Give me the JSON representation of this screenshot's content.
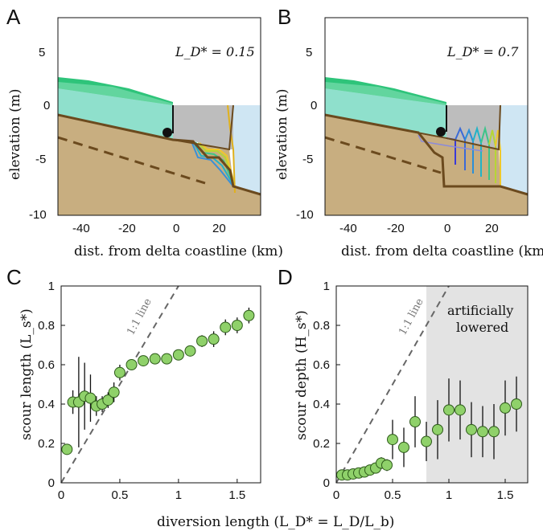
{
  "panels": {
    "A": {
      "letter": "A",
      "annotation": "L_D* = 0.15",
      "xticks": [
        "-40",
        "-20",
        "0",
        "20"
      ],
      "yticks": [
        "5",
        "0",
        "-5",
        "-10"
      ],
      "xlabel": "dist. from delta coastline (km)",
      "ylabel": "elevation (m)"
    },
    "B": {
      "letter": "B",
      "annotation": "L_D* = 0.7",
      "xticks": [
        "-40",
        "-20",
        "0",
        "20"
      ],
      "yticks": [
        "5",
        "0",
        "-5",
        "-10"
      ],
      "xlabel": "dist. from delta coastline (km)",
      "ylabel": "elevation (m)"
    },
    "C": {
      "letter": "C",
      "ylabel": "scour length (L_s*)",
      "line_label": "1:1 line"
    },
    "D": {
      "letter": "D",
      "ylabel": "scour depth (H_s*)",
      "line_label": "1:1 line",
      "shade_label_1": "artificially",
      "shade_label_2": "lowered"
    },
    "shared_xlabel": "diversion length (L_D* = L_D/L_b)"
  },
  "colors": {
    "sand": "#c8ae80",
    "water": "#cfe6f3",
    "green_fill": "#2ec47a",
    "teal_fill": "#8fe0cc",
    "grey_fill": "#bdbdbd",
    "brown": "#6b4a1e",
    "marker": "#8fd16a",
    "shade": "#e3e3e3"
  },
  "chart_data": [
    {
      "type": "line",
      "panel": "A",
      "annotation": "L_D* = 0.15",
      "xlim": [
        -52,
        37
      ],
      "ylim": [
        -10,
        8
      ],
      "xticks": [
        -40,
        -20,
        0,
        20
      ],
      "yticks": [
        5,
        0,
        -5,
        -10
      ],
      "xlabel": "dist. from delta coastline (km)",
      "ylabel": "elevation (m)"
    },
    {
      "type": "line",
      "panel": "B",
      "annotation": "L_D* = 0.7",
      "xlim": [
        -52,
        33
      ],
      "ylim": [
        -10,
        8
      ],
      "xticks": [
        -40,
        -20,
        0,
        20
      ],
      "yticks": [
        5,
        0,
        -5,
        -10
      ],
      "xlabel": "dist. from delta coastline (km)",
      "ylabel": "elevation (m)"
    },
    {
      "type": "scatter",
      "panel": "C",
      "xlim": [
        0,
        1.7
      ],
      "ylim": [
        0,
        1
      ],
      "xticks": [
        0,
        0.5,
        1,
        1.5
      ],
      "yticks": [
        0,
        0.2,
        0.4,
        0.6,
        0.8,
        1
      ],
      "ylabel": "scour length (L_s*)",
      "x": [
        0.05,
        0.1,
        0.15,
        0.2,
        0.25,
        0.3,
        0.35,
        0.4,
        0.45,
        0.5,
        0.6,
        0.7,
        0.8,
        0.9,
        1.0,
        1.1,
        1.2,
        1.3,
        1.4,
        1.5,
        1.6
      ],
      "y": [
        0.17,
        0.41,
        0.41,
        0.44,
        0.43,
        0.39,
        0.4,
        0.42,
        0.46,
        0.56,
        0.6,
        0.62,
        0.63,
        0.63,
        0.65,
        0.67,
        0.72,
        0.73,
        0.79,
        0.8,
        0.85
      ],
      "err": [
        0,
        0.06,
        0.23,
        0.17,
        0.12,
        0.05,
        0.04,
        0.04,
        0.05,
        0.04,
        0.02,
        0.02,
        0.02,
        0.02,
        0.02,
        0.02,
        0.03,
        0.04,
        0.04,
        0.04,
        0.04
      ]
    },
    {
      "type": "scatter",
      "panel": "D",
      "xlim": [
        0,
        1.7
      ],
      "ylim": [
        0,
        1
      ],
      "xticks": [
        0,
        0.5,
        1,
        1.5
      ],
      "yticks": [
        0,
        0.2,
        0.4,
        0.6,
        0.8,
        1
      ],
      "ylabel": "scour depth (H_s*)",
      "shaded_region_x": [
        0.8,
        1.7
      ],
      "x": [
        0.05,
        0.1,
        0.15,
        0.2,
        0.25,
        0.3,
        0.35,
        0.4,
        0.45,
        0.5,
        0.6,
        0.7,
        0.8,
        0.9,
        1.0,
        1.1,
        1.2,
        1.3,
        1.4,
        1.5,
        1.6
      ],
      "y": [
        0.04,
        0.04,
        0.045,
        0.05,
        0.055,
        0.065,
        0.075,
        0.1,
        0.09,
        0.22,
        0.18,
        0.31,
        0.21,
        0.27,
        0.37,
        0.37,
        0.27,
        0.26,
        0.26,
        0.38,
        0.4
      ],
      "err": [
        0.01,
        0.01,
        0.01,
        0.01,
        0.015,
        0.02,
        0.02,
        0.03,
        0.03,
        0.1,
        0.1,
        0.13,
        0.1,
        0.15,
        0.16,
        0.15,
        0.14,
        0.13,
        0.14,
        0.14,
        0.14
      ]
    }
  ]
}
